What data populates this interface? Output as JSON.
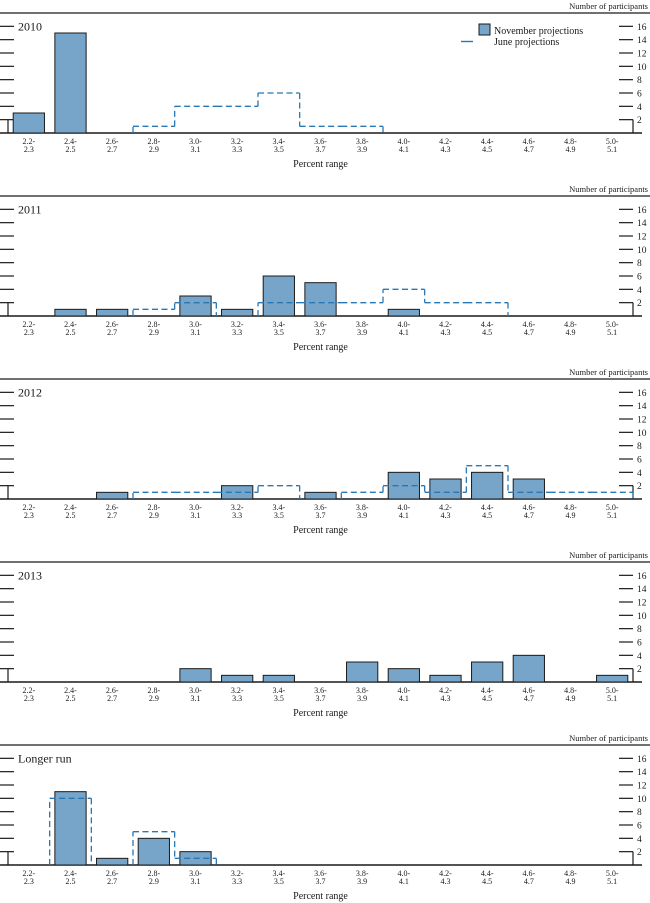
{
  "figure": {
    "right_axis_title": "Number of participants",
    "x_axis_title": "Percent range",
    "legend": {
      "november_label": "November projections",
      "june_label": "June projections"
    },
    "colors": {
      "bar_fill": "#76a5c9",
      "bar_stroke": "#1b1b1b",
      "june_dash": "#2878b5",
      "text": "#1a1a1a",
      "rule": "#1a1a1a"
    }
  },
  "chart_data": [
    {
      "type": "bar",
      "title": "2010",
      "xlabel": "Percent range",
      "ylabel": "Number of participants",
      "ylim": [
        0,
        18
      ],
      "yticks": [
        2,
        4,
        6,
        8,
        10,
        12,
        14,
        16
      ],
      "grid": false,
      "legend_position": "top-right",
      "show_legend": true,
      "categories": [
        "2.2-2.3",
        "2.4-2.5",
        "2.6-2.7",
        "2.8-2.9",
        "3.0-3.1",
        "3.2-3.3",
        "3.4-3.5",
        "3.6-3.7",
        "3.8-3.9",
        "4.0-4.1",
        "4.2-4.3",
        "4.4-4.5",
        "4.6-4.7",
        "4.8-4.9",
        "5.0-5.1"
      ],
      "series": [
        {
          "name": "November projections",
          "style": "filled-bar",
          "values": [
            3,
            15,
            0,
            0,
            0,
            0,
            0,
            0,
            0,
            0,
            0,
            0,
            0,
            0,
            0
          ]
        },
        {
          "name": "June projections",
          "style": "dashed-step",
          "values": [
            0,
            0,
            0,
            1,
            4,
            4,
            6,
            1,
            1,
            0,
            0,
            0,
            0,
            0,
            0
          ]
        }
      ]
    },
    {
      "type": "bar",
      "title": "2011",
      "xlabel": "Percent range",
      "ylabel": "Number of participants",
      "ylim": [
        0,
        18
      ],
      "yticks": [
        2,
        4,
        6,
        8,
        10,
        12,
        14,
        16
      ],
      "grid": false,
      "show_legend": false,
      "categories": [
        "2.2-2.3",
        "2.4-2.5",
        "2.6-2.7",
        "2.8-2.9",
        "3.0-3.1",
        "3.2-3.3",
        "3.4-3.5",
        "3.6-3.7",
        "3.8-3.9",
        "4.0-4.1",
        "4.2-4.3",
        "4.4-4.5",
        "4.6-4.7",
        "4.8-4.9",
        "5.0-5.1"
      ],
      "series": [
        {
          "name": "November projections",
          "style": "filled-bar",
          "values": [
            0,
            1,
            1,
            0,
            3,
            1,
            6,
            5,
            0,
            1,
            0,
            0,
            0,
            0,
            0
          ]
        },
        {
          "name": "June projections",
          "style": "dashed-step",
          "values": [
            0,
            0,
            0,
            1,
            2,
            0,
            2,
            2,
            2,
            4,
            2,
            2,
            0,
            0,
            0
          ]
        }
      ]
    },
    {
      "type": "bar",
      "title": "2012",
      "xlabel": "Percent range",
      "ylabel": "Number of participants",
      "ylim": [
        0,
        18
      ],
      "yticks": [
        2,
        4,
        6,
        8,
        10,
        12,
        14,
        16
      ],
      "grid": false,
      "show_legend": false,
      "categories": [
        "2.2-2.3",
        "2.4-2.5",
        "2.6-2.7",
        "2.8-2.9",
        "3.0-3.1",
        "3.2-3.3",
        "3.4-3.5",
        "3.6-3.7",
        "3.8-3.9",
        "4.0-4.1",
        "4.2-4.3",
        "4.4-4.5",
        "4.6-4.7",
        "4.8-4.9",
        "5.0-5.1"
      ],
      "series": [
        {
          "name": "November projections",
          "style": "filled-bar",
          "values": [
            0,
            0,
            1,
            0,
            0,
            2,
            0,
            1,
            0,
            4,
            3,
            4,
            3,
            0,
            0
          ]
        },
        {
          "name": "June projections",
          "style": "dashed-step",
          "values": [
            0,
            0,
            0,
            1,
            1,
            1,
            2,
            0,
            1,
            2,
            1,
            5,
            1,
            1,
            1
          ]
        }
      ]
    },
    {
      "type": "bar",
      "title": "2013",
      "xlabel": "Percent range",
      "ylabel": "Number of participants",
      "ylim": [
        0,
        18
      ],
      "yticks": [
        2,
        4,
        6,
        8,
        10,
        12,
        14,
        16
      ],
      "grid": false,
      "show_legend": false,
      "categories": [
        "2.2-2.3",
        "2.4-2.5",
        "2.6-2.7",
        "2.8-2.9",
        "3.0-3.1",
        "3.2-3.3",
        "3.4-3.5",
        "3.6-3.7",
        "3.8-3.9",
        "4.0-4.1",
        "4.2-4.3",
        "4.4-4.5",
        "4.6-4.7",
        "4.8-4.9",
        "5.0-5.1"
      ],
      "series": [
        {
          "name": "November projections",
          "style": "filled-bar",
          "values": [
            0,
            0,
            0,
            0,
            2,
            1,
            1,
            0,
            3,
            2,
            1,
            3,
            4,
            0,
            1
          ]
        }
      ]
    },
    {
      "type": "bar",
      "title": "Longer run",
      "xlabel": "Percent range",
      "ylabel": "Number of participants",
      "ylim": [
        0,
        18
      ],
      "yticks": [
        2,
        4,
        6,
        8,
        10,
        12,
        14,
        16
      ],
      "grid": false,
      "show_legend": false,
      "categories": [
        "2.2-2.3",
        "2.4-2.5",
        "2.6-2.7",
        "2.8-2.9",
        "3.0-3.1",
        "3.2-3.3",
        "3.4-3.5",
        "3.6-3.7",
        "3.8-3.9",
        "4.0-4.1",
        "4.2-4.3",
        "4.4-4.5",
        "4.6-4.7",
        "4.8-4.9",
        "5.0-5.1"
      ],
      "series": [
        {
          "name": "November projections",
          "style": "filled-bar",
          "values": [
            0,
            11,
            1,
            4,
            2,
            0,
            0,
            0,
            0,
            0,
            0,
            0,
            0,
            0,
            0
          ]
        },
        {
          "name": "June projections",
          "style": "dashed-step",
          "values": [
            0,
            10,
            0,
            5,
            1,
            0,
            0,
            0,
            0,
            0,
            0,
            0,
            0,
            0,
            0
          ]
        }
      ]
    }
  ]
}
